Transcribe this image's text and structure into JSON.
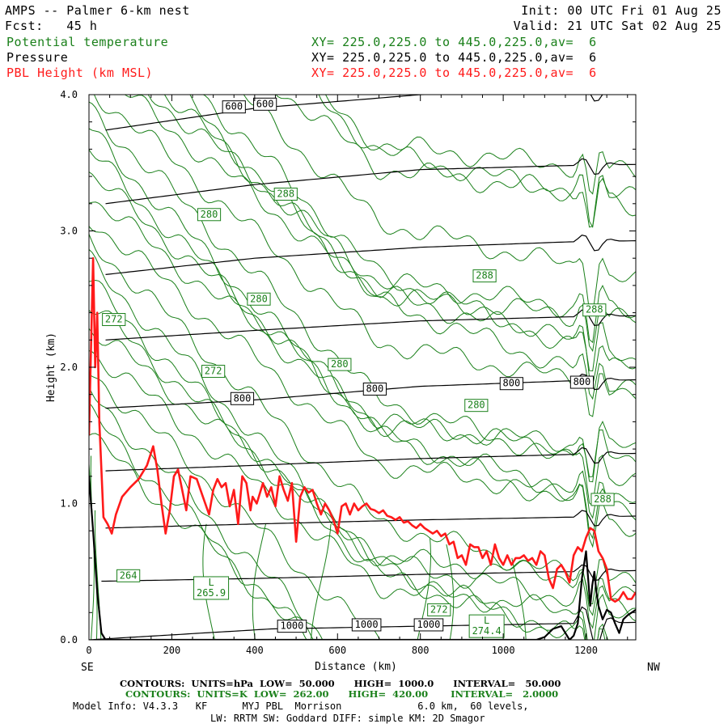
{
  "header": {
    "title": "AMPS -- Palmer 6-km nest",
    "forecast": "Fcst:   45 h",
    "init": "Init: 00 UTC Fri 01 Aug 25",
    "valid": "Valid: 21 UTC Sat 02 Aug 25",
    "fields": [
      {
        "name": "Potential temperature",
        "xy": "XY= 225.0,225.0 to 445.0,225.0,av=  6",
        "color": "#1a801a"
      },
      {
        "name": "Pressure",
        "xy": "XY= 225.0,225.0 to 445.0,225.0,av=  6",
        "color": "#000000"
      },
      {
        "name": "PBL Height (km MSL)",
        "xy": "XY= 225.0,225.0 to 445.0,225.0,av=  6",
        "color": "#ff1a1a"
      }
    ]
  },
  "chart_data": {
    "type": "line",
    "xlabel": "Distance (km)",
    "ylabel": "Height (km)",
    "xlim": [
      0,
      1320
    ],
    "ylim": [
      0,
      4.0
    ],
    "x_ticks": [
      0,
      200,
      400,
      600,
      800,
      1000,
      1200
    ],
    "y_ticks": [
      0.0,
      1.0,
      2.0,
      3.0,
      4.0
    ],
    "x_tick_labels": [
      "0",
      "200",
      "400",
      "600",
      "800",
      "1000",
      "1200"
    ],
    "y_tick_labels": [
      "0.0",
      "1.0",
      "2.0",
      "3.0",
      "4.0"
    ],
    "left_end_label": "SE",
    "right_end_label": "NW",
    "series": [
      {
        "name": "PBL Height (km MSL)",
        "color": "#ff1a1a",
        "x": [
          0,
          10,
          15,
          20,
          25,
          35,
          45,
          55,
          65,
          80,
          100,
          120,
          140,
          155,
          165,
          175,
          185,
          195,
          205,
          215,
          225,
          235,
          245,
          260,
          275,
          290,
          300,
          310,
          320,
          330,
          340,
          350,
          360,
          370,
          380,
          390,
          395,
          405,
          420,
          430,
          440,
          450,
          460,
          470,
          480,
          490,
          500,
          510,
          520,
          530,
          540,
          550,
          560,
          570,
          580,
          590,
          600,
          610,
          620,
          630,
          640,
          650,
          660,
          670,
          680,
          690,
          700,
          710,
          720,
          730,
          740,
          750,
          760,
          770,
          780,
          790,
          800,
          810,
          820,
          830,
          840,
          850,
          860,
          870,
          880,
          890,
          900,
          910,
          920,
          930,
          940,
          950,
          960,
          970,
          980,
          990,
          1000,
          1010,
          1020,
          1030,
          1040,
          1050,
          1060,
          1070,
          1080,
          1090,
          1100,
          1110,
          1120,
          1130,
          1140,
          1150,
          1160,
          1170,
          1180,
          1190,
          1200,
          1210,
          1220,
          1230,
          1240,
          1250,
          1260,
          1270,
          1280,
          1290,
          1300,
          1310,
          1320
        ],
        "y": [
          1.5,
          2.8,
          2.0,
          2.4,
          1.6,
          0.9,
          0.85,
          0.78,
          0.92,
          1.05,
          1.12,
          1.18,
          1.28,
          1.42,
          1.25,
          1.0,
          0.78,
          0.95,
          1.2,
          1.25,
          1.1,
          0.95,
          1.2,
          1.18,
          1.05,
          0.92,
          1.1,
          1.18,
          1.12,
          1.15,
          0.98,
          1.1,
          0.85,
          1.2,
          1.15,
          0.95,
          1.05,
          1.0,
          1.15,
          1.05,
          1.12,
          0.98,
          1.2,
          1.1,
          1.02,
          1.15,
          0.72,
          1.05,
          1.12,
          1.08,
          1.1,
          1.0,
          0.92,
          1.0,
          0.95,
          0.88,
          0.78,
          0.98,
          1.0,
          0.92,
          1.0,
          0.95,
          0.98,
          1.0,
          0.96,
          0.95,
          0.93,
          0.95,
          0.91,
          0.9,
          0.88,
          0.9,
          0.86,
          0.87,
          0.84,
          0.82,
          0.85,
          0.82,
          0.8,
          0.78,
          0.8,
          0.76,
          0.78,
          0.7,
          0.72,
          0.6,
          0.62,
          0.55,
          0.7,
          0.68,
          0.68,
          0.6,
          0.65,
          0.55,
          0.7,
          0.6,
          0.55,
          0.62,
          0.55,
          0.6,
          0.6,
          0.62,
          0.58,
          0.6,
          0.55,
          0.65,
          0.62,
          0.45,
          0.38,
          0.52,
          0.55,
          0.5,
          0.42,
          0.62,
          0.68,
          0.65,
          0.75,
          0.82,
          0.8,
          0.65,
          0.6,
          0.52,
          0.3,
          0.28,
          0.3,
          0.35,
          0.3,
          0.3,
          0.35
        ]
      },
      {
        "name": "Terrain",
        "color": "#000000",
        "x": [
          0,
          10,
          20,
          30,
          40,
          60,
          1080,
          1100,
          1120,
          1140,
          1160,
          1170,
          1180,
          1190,
          1200,
          1205,
          1210,
          1215,
          1220,
          1225,
          1230,
          1240,
          1250,
          1260,
          1270,
          1280,
          1290,
          1300,
          1310,
          1320
        ],
        "y": [
          1.2,
          0.8,
          0.35,
          0.05,
          0.0,
          0.0,
          0.0,
          0.02,
          0.08,
          0.1,
          0.0,
          0.03,
          0.12,
          0.45,
          0.65,
          0.45,
          0.25,
          0.4,
          0.5,
          0.35,
          0.25,
          0.15,
          0.22,
          0.2,
          0.12,
          0.05,
          0.15,
          0.18,
          0.2,
          0.22
        ]
      }
    ],
    "pressure_contours_hPa": {
      "levels": [
        1000,
        950,
        900,
        850,
        800,
        750,
        700,
        650,
        600
      ],
      "labels": [
        {
          "text": "1000",
          "x": 490,
          "y": 0.1
        },
        {
          "text": "1000",
          "x": 670,
          "y": 0.11
        },
        {
          "text": "1000",
          "x": 820,
          "y": 0.11
        },
        {
          "text": "800",
          "x": 370,
          "y": 1.77
        },
        {
          "text": "800",
          "x": 690,
          "y": 1.84
        },
        {
          "text": "800",
          "x": 1020,
          "y": 1.88
        },
        {
          "text": "800",
          "x": 1190,
          "y": 1.89
        },
        {
          "text": "600",
          "x": 350,
          "y": 3.91
        },
        {
          "text": "600",
          "x": 425,
          "y": 3.93
        }
      ],
      "base_heights": {
        "1000": [
          [
            0,
            0.0
          ],
          [
            440,
            0.08
          ],
          [
            800,
            0.1
          ],
          [
            1160,
            0.12
          ]
        ],
        "950": [
          [
            30,
            0.43
          ],
          [
            400,
            0.45
          ],
          [
            800,
            0.48
          ],
          [
            1160,
            0.5
          ]
        ],
        "900": [
          [
            40,
            0.82
          ],
          [
            400,
            0.85
          ],
          [
            800,
            0.88
          ],
          [
            1160,
            0.9
          ]
        ],
        "850": [
          [
            40,
            1.24
          ],
          [
            400,
            1.28
          ],
          [
            800,
            1.33
          ],
          [
            1160,
            1.36
          ]
        ],
        "800": [
          [
            40,
            1.7
          ],
          [
            400,
            1.76
          ],
          [
            800,
            1.86
          ],
          [
            1160,
            1.9
          ]
        ],
        "750": [
          [
            40,
            2.2
          ],
          [
            400,
            2.27
          ],
          [
            800,
            2.34
          ],
          [
            1160,
            2.37
          ]
        ],
        "700": [
          [
            40,
            2.68
          ],
          [
            400,
            2.8
          ],
          [
            800,
            2.88
          ],
          [
            1160,
            2.92
          ]
        ],
        "650": [
          [
            40,
            3.2
          ],
          [
            400,
            3.34
          ],
          [
            800,
            3.45
          ],
          [
            1160,
            3.48
          ]
        ],
        "600": [
          [
            40,
            3.74
          ],
          [
            400,
            3.9
          ],
          [
            800,
            4.0
          ]
        ]
      }
    },
    "theta_contours_K": {
      "labels": [
        {
          "text": "272",
          "x": 60,
          "y": 2.35
        },
        {
          "text": "272",
          "x": 300,
          "y": 1.97
        },
        {
          "text": "280",
          "x": 290,
          "y": 3.12
        },
        {
          "text": "280",
          "x": 410,
          "y": 2.5
        },
        {
          "text": "280",
          "x": 605,
          "y": 2.02
        },
        {
          "text": "280",
          "x": 935,
          "y": 1.72
        },
        {
          "text": "288",
          "x": 475,
          "y": 3.27
        },
        {
          "text": "288",
          "x": 955,
          "y": 2.67
        },
        {
          "text": "288",
          "x": 1220,
          "y": 2.42
        },
        {
          "text": "288",
          "x": 1240,
          "y": 1.03
        },
        {
          "text": "264",
          "x": 95,
          "y": 0.47
        },
        {
          "text": "272",
          "x": 845,
          "y": 0.22
        }
      ],
      "lows": [
        {
          "text": "L",
          "value": "265.9",
          "x": 295,
          "y": 0.38
        },
        {
          "text": "L",
          "value": "274.4",
          "x": 960,
          "y": 0.1
        }
      ]
    }
  },
  "footer": {
    "line1": "CONTOURS:  UNITS=hPa  LOW=  50.000      HIGH=  1000.0      INTERVAL=   50.000",
    "line2": "CONTOURS:  UNITS=K  LOW=  262.00      HIGH=  420.00       INTERVAL=   2.0000",
    "line3": "Model Info: V4.3.3   KF      MYJ PBL  Morrison             6.0 km,  60 levels,",
    "line4": "LW: RRTM SW: Goddard DIFF: simple KM: 2D Smagor"
  },
  "colors": {
    "pressure": "#000000",
    "theta": "#1a801a",
    "pbl": "#ff1a1a"
  }
}
